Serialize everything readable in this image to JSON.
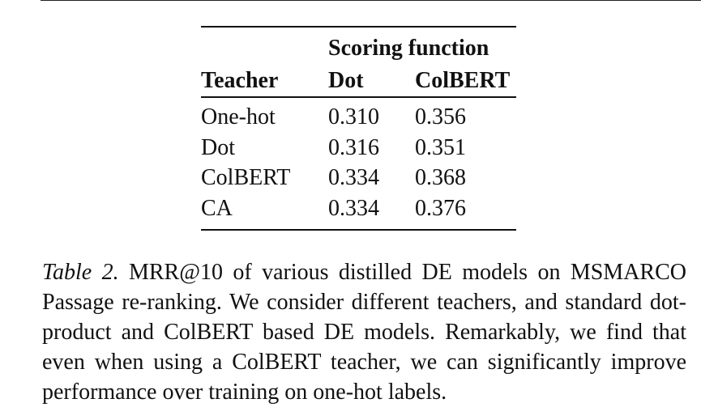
{
  "table": {
    "spanner": "Scoring function",
    "headers": [
      "Teacher",
      "Dot",
      "ColBERT"
    ],
    "rows": [
      {
        "teacher": "One-hot",
        "dot": "0.310",
        "colbert": "0.356"
      },
      {
        "teacher": "Dot",
        "dot": "0.316",
        "colbert": "0.351"
      },
      {
        "teacher": "ColBERT",
        "dot": "0.334",
        "colbert": "0.368"
      },
      {
        "teacher": "CA",
        "dot": "0.334",
        "colbert": "0.376"
      }
    ]
  },
  "caption": {
    "label": "Table 2.",
    "text": " MRR@10 of various distilled DE models on MSMARCO Passage re-ranking. We consider different teachers, and standard dot-product and ColBERT based DE models. Remarkably, we find that even when using a ColBERT teacher, we can significantly improve performance over training on one-hot labels."
  }
}
